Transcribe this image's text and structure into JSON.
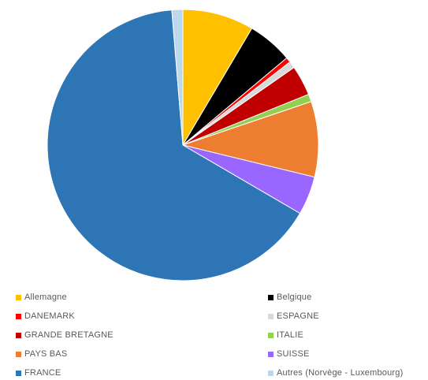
{
  "chart_data": {
    "type": "pie",
    "categories": [
      "Allemagne",
      "Belgique",
      "DANEMARK",
      "ESPAGNE",
      "GRANDE BRETAGNE",
      "ITALIE",
      "PAYS BAS",
      "SUISSE",
      "FRANCE",
      "Autres (Norvège - Luxembourg)"
    ],
    "values": [
      8.5,
      5.4,
      0.6,
      0.8,
      3.6,
      0.9,
      9.0,
      4.6,
      65.3,
      1.3
    ],
    "colors": [
      "#FFC000",
      "#000000",
      "#FF0000",
      "#D9D9D9",
      "#C00000",
      "#92D050",
      "#ED7D31",
      "#9966FF",
      "#2E75B6",
      "#BDD7EE"
    ],
    "legend_position": "bottom",
    "legend_columns": 2,
    "title": ""
  }
}
